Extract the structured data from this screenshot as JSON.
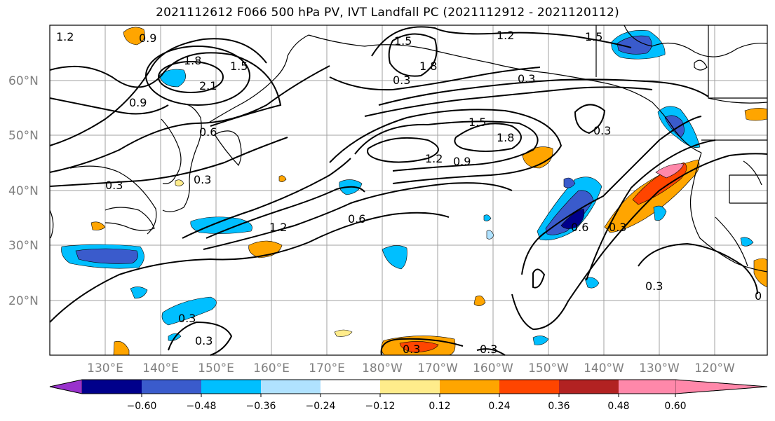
{
  "title": "2021112612 F066 500 hPa PV, IVT Landfall PC (2021112912 - 2021120112)",
  "map": {
    "lon_labels": [
      "130°E",
      "140°E",
      "150°E",
      "160°E",
      "170°E",
      "180°W",
      "170°W",
      "160°W",
      "150°W",
      "140°W",
      "130°W",
      "120°W"
    ],
    "lat_labels": [
      "60°N",
      "50°N",
      "40°N",
      "30°N",
      "20°N"
    ],
    "contour_labels": [
      "1.2",
      "0.9",
      "1.8",
      "1.5",
      "2.1",
      "0.9",
      "0.6",
      "0.3",
      "0.3",
      "1.5",
      "1.8",
      "1.2",
      "1.5",
      "1.8",
      "1.5",
      "1.2",
      "0.9",
      "0.6",
      "1.2",
      "0.3",
      "0.6",
      "0.3",
      "0.3",
      "0.3",
      "0.3",
      "0.3",
      "0.3",
      "0.3",
      "0.3",
      "0"
    ]
  },
  "colorbar": {
    "colors": [
      "#9932cc",
      "#00008b",
      "#3a5bcc",
      "#00bfff",
      "#b0e2ff",
      "#ffffff",
      "#ffec8b",
      "#ffa500",
      "#ff4500",
      "#b22222",
      "#ff88aa"
    ],
    "tick_labels": [
      "−0.60",
      "−0.48",
      "−0.36",
      "−0.24",
      "−0.12",
      "0.12",
      "0.24",
      "0.36",
      "0.48",
      "0.60"
    ]
  }
}
